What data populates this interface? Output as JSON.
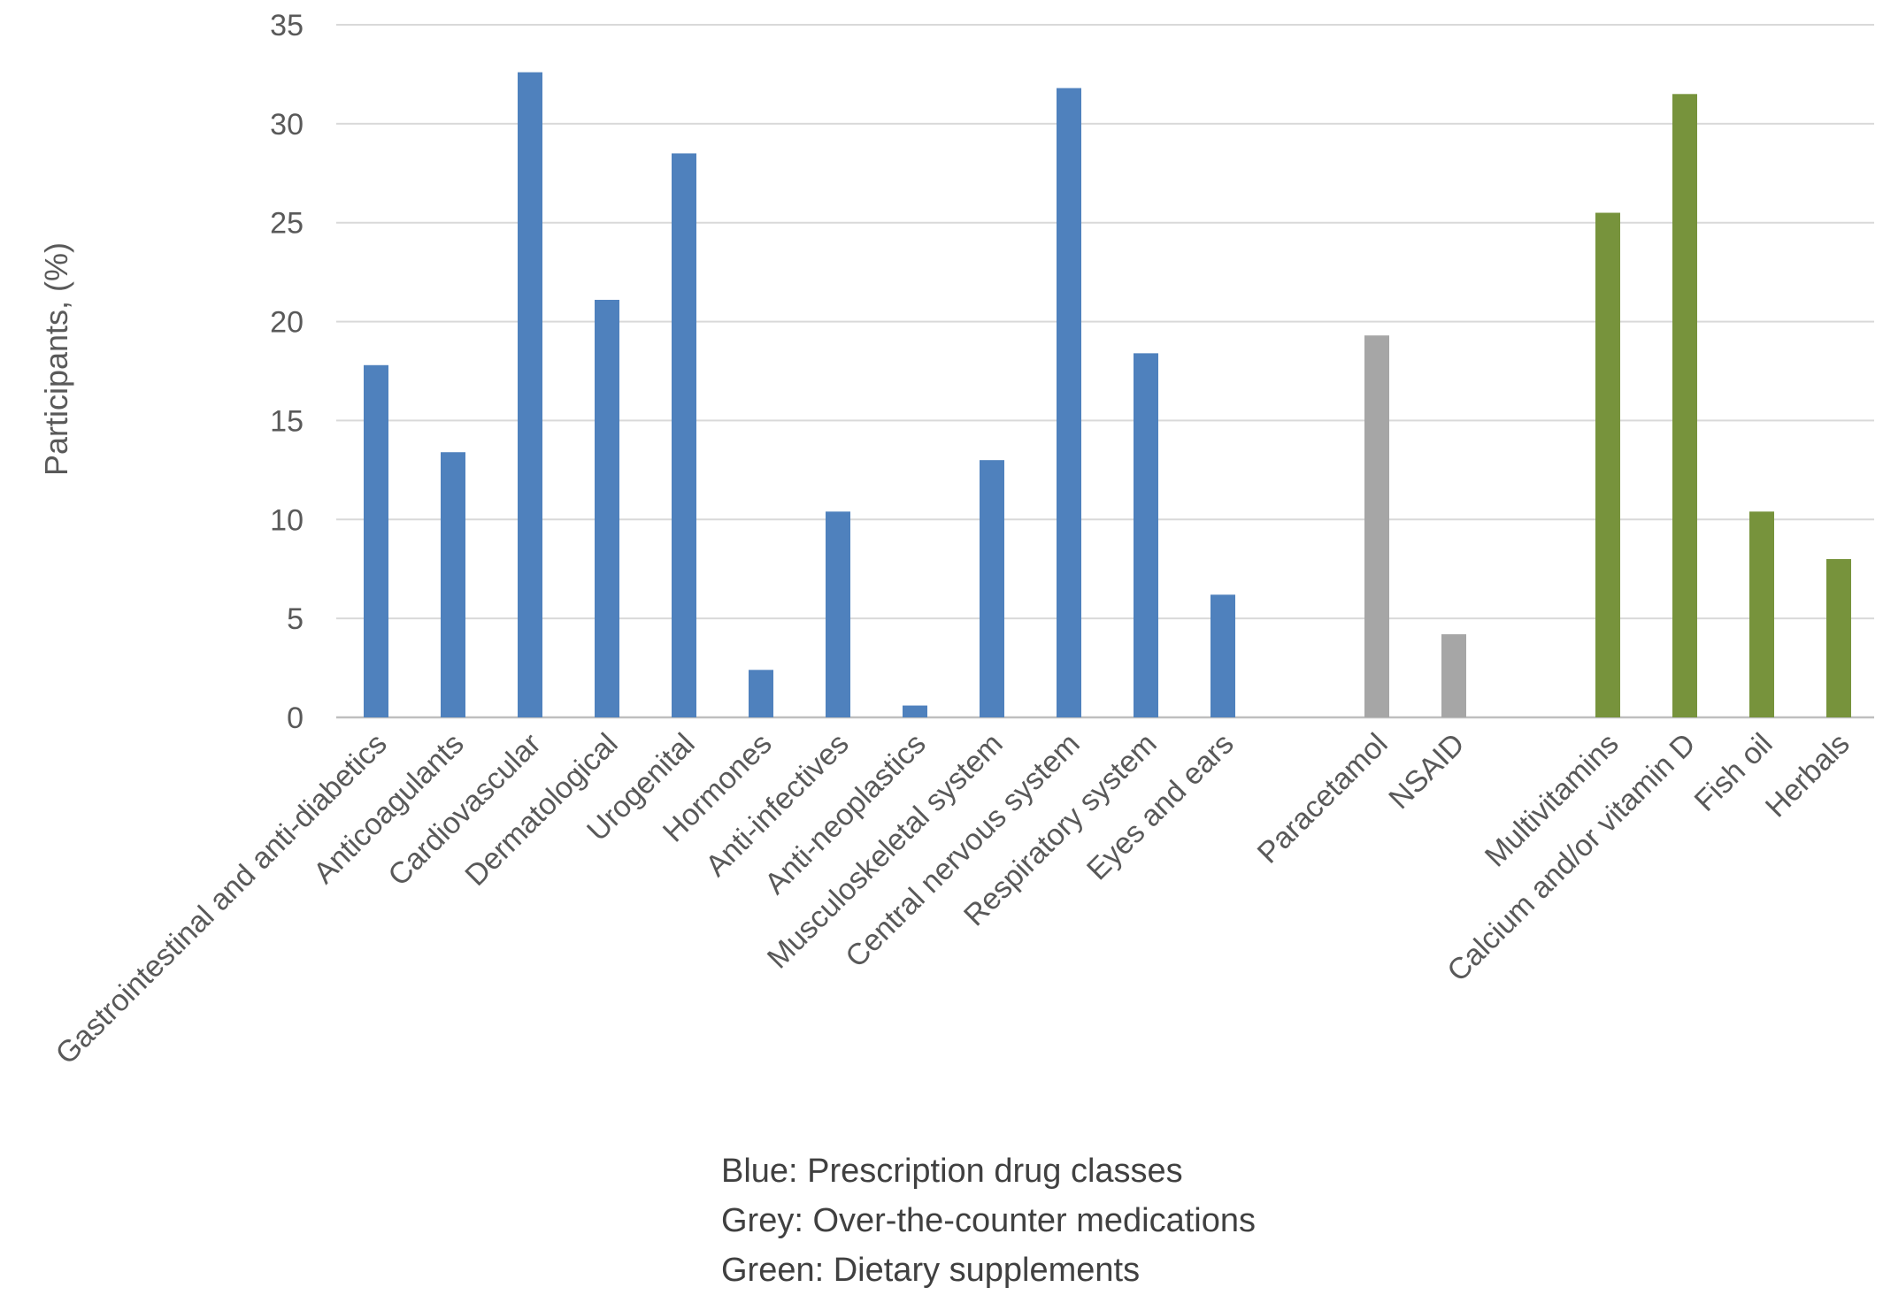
{
  "chart_data": {
    "type": "bar",
    "title": "",
    "xlabel": "",
    "ylabel": "Participants, (%)",
    "ylim": [
      0,
      35
    ],
    "yticks": [
      0,
      5,
      10,
      15,
      20,
      25,
      30,
      35
    ],
    "grid": true,
    "legend": "none",
    "groups": [
      {
        "color": "#4F81BD",
        "items": [
          {
            "category": "Gastrointestinal and anti-diabetics",
            "value": 17.8
          },
          {
            "category": "Anticoagulants",
            "value": 13.4
          },
          {
            "category": "Cardiovascular",
            "value": 32.6
          },
          {
            "category": "Dermatological",
            "value": 21.1
          },
          {
            "category": "Urogenital",
            "value": 28.5
          },
          {
            "category": "Hormones",
            "value": 2.4
          },
          {
            "category": "Anti-infectives",
            "value": 10.4
          },
          {
            "category": "Anti-neoplastics",
            "value": 0.6
          },
          {
            "category": "Musculoskeletal system",
            "value": 13.0
          },
          {
            "category": "Central nervous system",
            "value": 31.8
          },
          {
            "category": "Respiratory system",
            "value": 18.4
          },
          {
            "category": "Eyes and ears",
            "value": 6.2
          }
        ]
      },
      {
        "color": "#A6A6A6",
        "items": [
          {
            "category": "Paracetamol",
            "value": 19.3
          },
          {
            "category": "NSAID",
            "value": 4.2
          }
        ]
      },
      {
        "color": "#77933C",
        "items": [
          {
            "category": "Multivitamins",
            "value": 25.5
          },
          {
            "category": "Calcium and/or vitamin D",
            "value": 31.5
          },
          {
            "category": "Fish oil",
            "value": 10.4
          },
          {
            "category": "Herbals",
            "value": 8.0
          }
        ]
      }
    ],
    "notes": [
      "Blue: Prescription drug classes",
      "Grey: Over-the-counter medications",
      "Green: Dietary supplements"
    ]
  }
}
